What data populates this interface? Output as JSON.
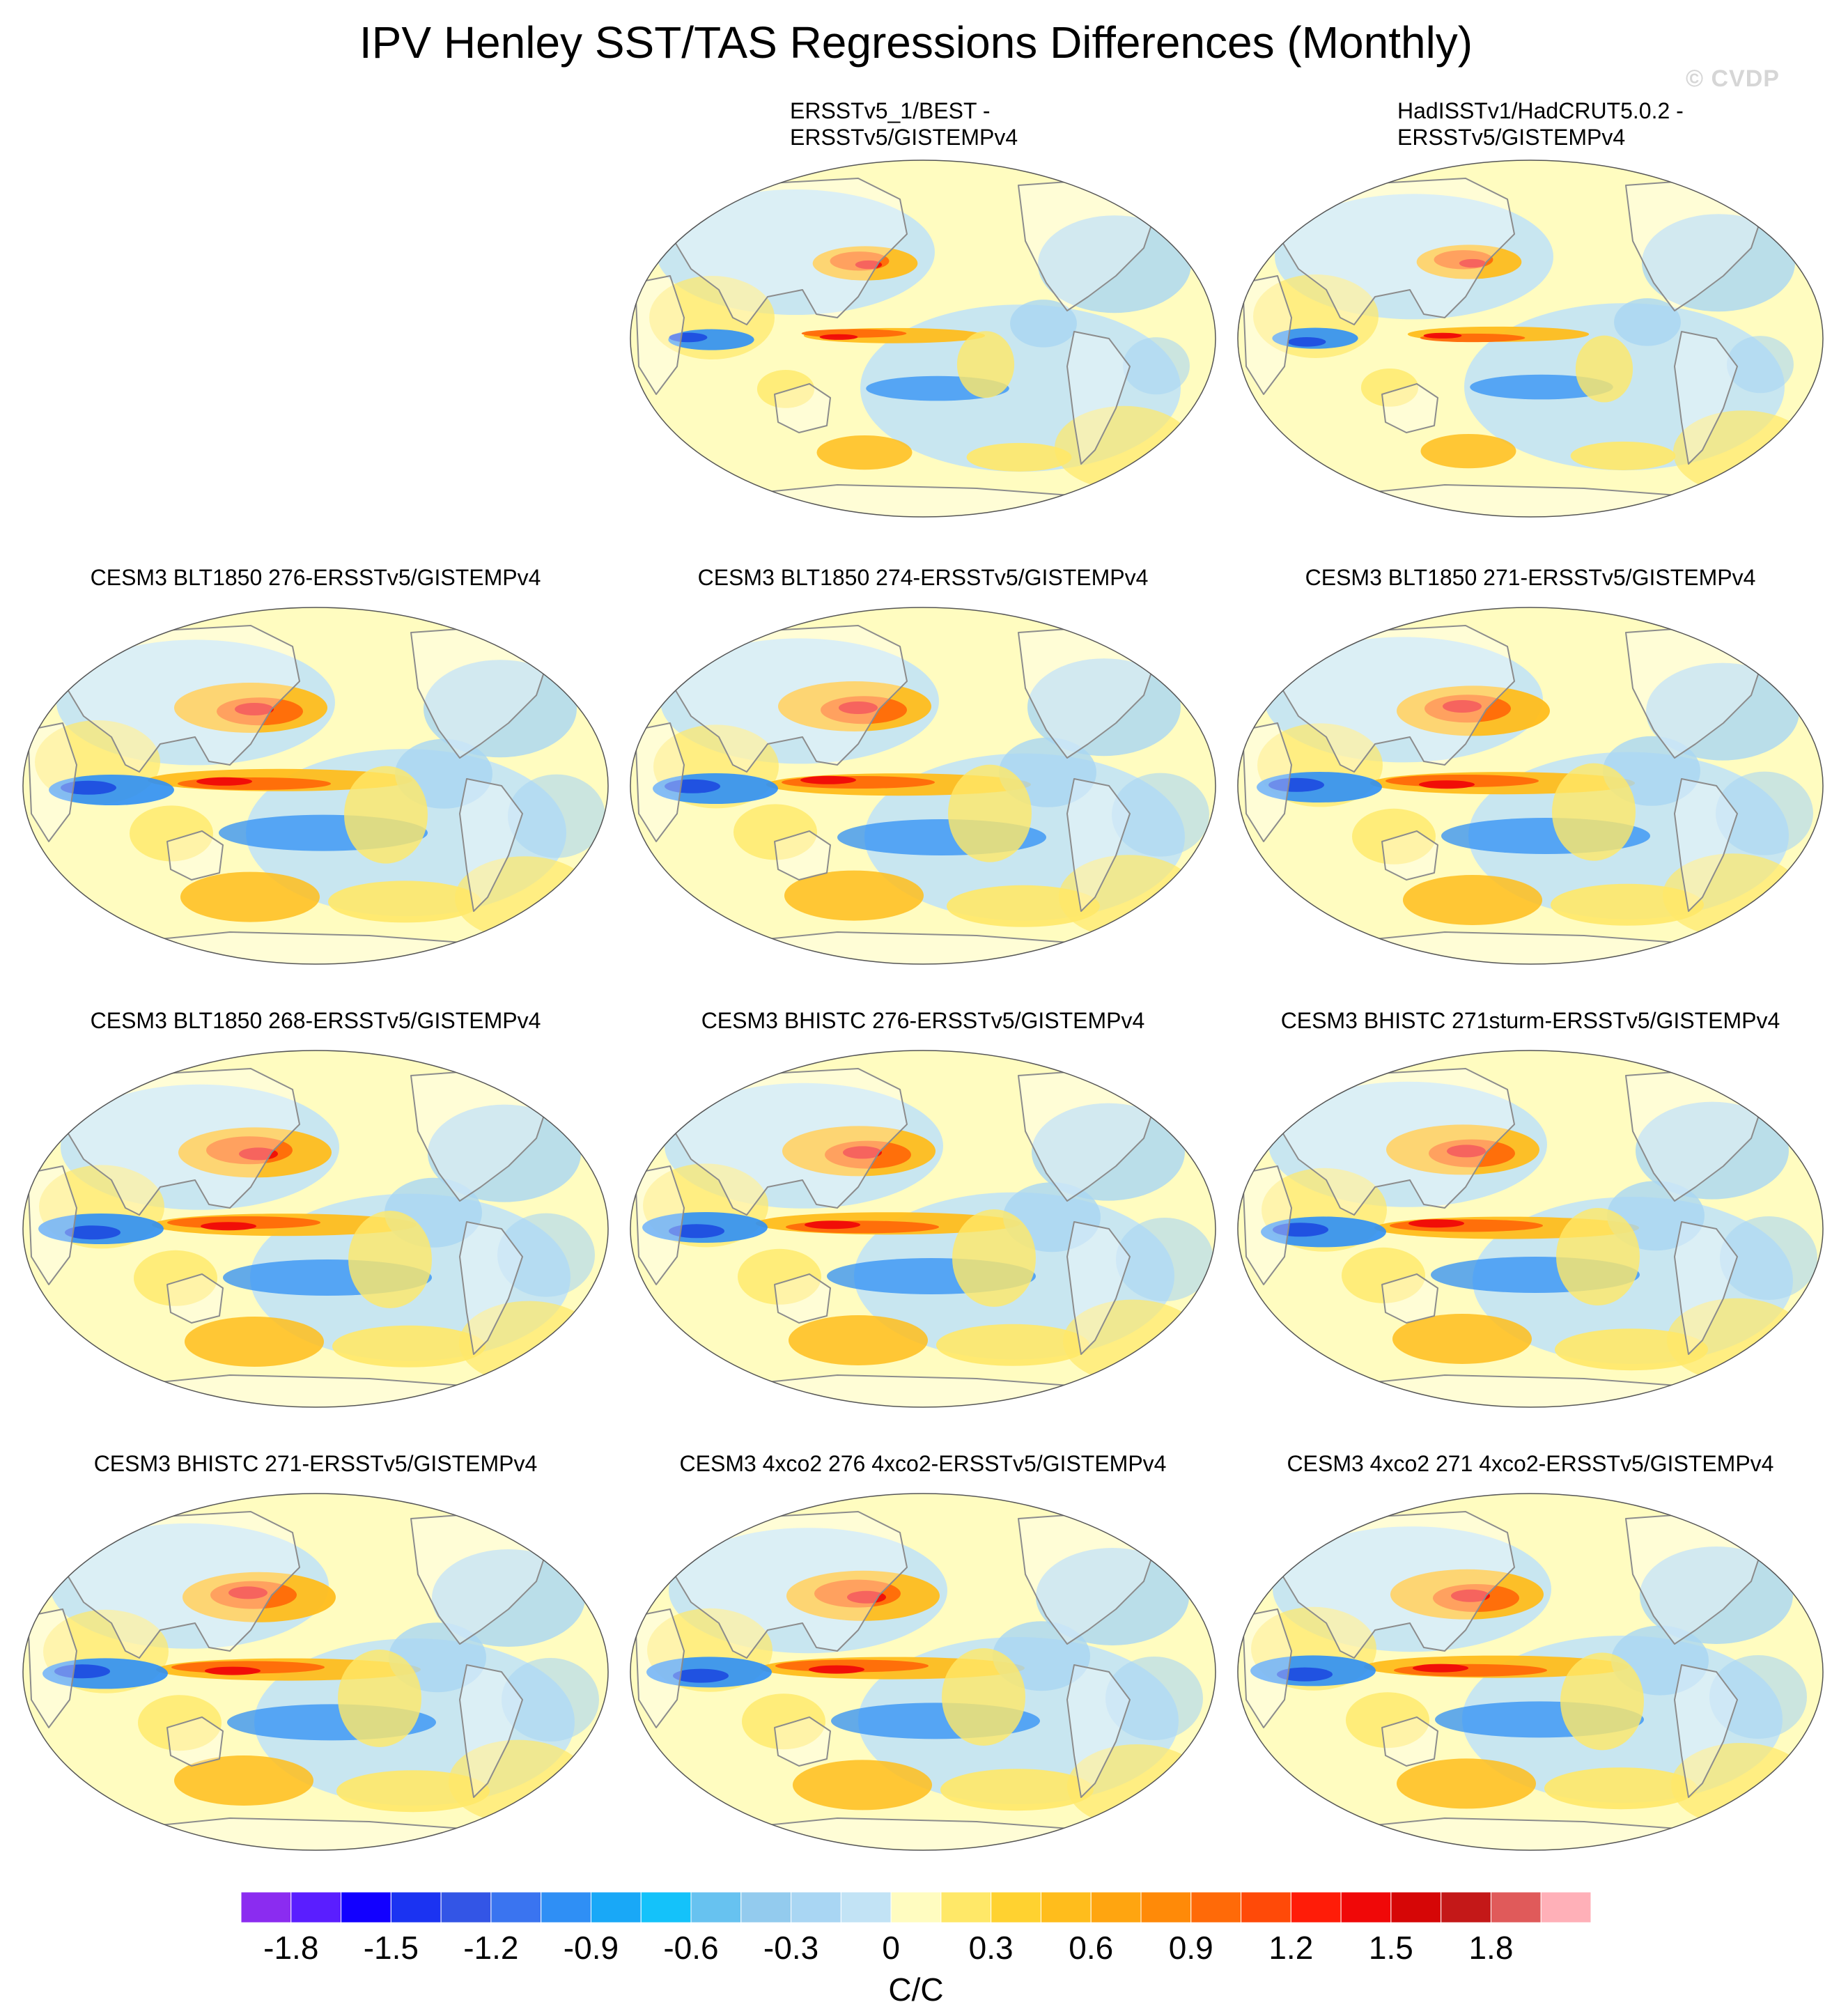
{
  "figure": {
    "title": "IPV Henley SST/TAS Regressions Differences (Monthly)",
    "watermark": "© CVDP"
  },
  "panels": [
    {
      "id": "p-ersst-best",
      "title_lines": [
        "ERSSTv5_1/BEST -",
        "ERSSTv5/GISTEMPv4"
      ]
    },
    {
      "id": "p-hadisst",
      "title_lines": [
        "HadISSTv1/HadCRUT5.0.2 -",
        "ERSSTv5/GISTEMPv4"
      ]
    },
    {
      "id": "p-blt1850-276",
      "title_lines": [
        "CESM3 BLT1850 276-ERSSTv5/GISTEMPv4"
      ]
    },
    {
      "id": "p-blt1850-274",
      "title_lines": [
        "CESM3 BLT1850 274-ERSSTv5/GISTEMPv4"
      ]
    },
    {
      "id": "p-blt1850-271",
      "title_lines": [
        "CESM3 BLT1850 271-ERSSTv5/GISTEMPv4"
      ]
    },
    {
      "id": "p-blt1850-268",
      "title_lines": [
        "CESM3 BLT1850 268-ERSSTv5/GISTEMPv4"
      ]
    },
    {
      "id": "p-bhistc-276",
      "title_lines": [
        "CESM3 BHISTC 276-ERSSTv5/GISTEMPv4"
      ]
    },
    {
      "id": "p-bhistc-271sturm",
      "title_lines": [
        "CESM3 BHISTC 271sturm-ERSSTv5/GISTEMPv4"
      ]
    },
    {
      "id": "p-bhistc-271",
      "title_lines": [
        "CESM3 BHISTC 271-ERSSTv5/GISTEMPv4"
      ]
    },
    {
      "id": "p-4xco2-276",
      "title_lines": [
        "CESM3 4xco2 276 4xco2-ERSSTv5/GISTEMPv4"
      ]
    },
    {
      "id": "p-4xco2-271",
      "title_lines": [
        "CESM3 4xco2 271 4xco2-ERSSTv5/GISTEMPv4"
      ]
    }
  ],
  "colorbar": {
    "units": "C/C",
    "labels": [
      "-1.8",
      "-1.5",
      "-1.2",
      "-0.9",
      "-0.6",
      "-0.3",
      "0",
      "0.3",
      "0.6",
      "0.9",
      "1.2",
      "1.5",
      "1.8"
    ],
    "colors": [
      "#8b2cf0",
      "#5a1eff",
      "#1200ff",
      "#1b33f2",
      "#3355e6",
      "#3a74f0",
      "#2f8ff5",
      "#19a8f7",
      "#14c2fa",
      "#67c2f0",
      "#93cbee",
      "#a9d6f3",
      "#c2e3f5",
      "#fffcc0",
      "#ffe868",
      "#ffd230",
      "#ffbd1c",
      "#ffa510",
      "#ff8a08",
      "#ff6a08",
      "#ff4a08",
      "#ff1c08",
      "#f00808",
      "#d60606",
      "#c41818",
      "#e05a5a",
      "#ffb0b8"
    ]
  },
  "palette": {
    "neg_strong": "#1d4ae0",
    "neg_mid": "#2f8ff5",
    "neg_light": "#a9d6f3",
    "neg_pale": "#c2e3f5",
    "pos_pale": "#fffcc0",
    "pos_light": "#ffe868",
    "pos_mid": "#ffbd1c",
    "pos_strong": "#ff6a08",
    "pos_peak": "#f00808",
    "land": "#ffffff",
    "coast": "#8c8c8c"
  }
}
